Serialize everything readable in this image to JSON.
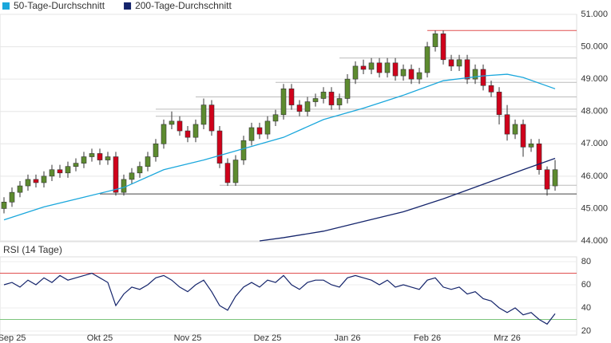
{
  "chart_data": {
    "type": "candlestick",
    "up_color": "#5d8b2f",
    "down_color": "#d0021b",
    "categories": [
      null,
      "Sep 25",
      null,
      null,
      null,
      null,
      null,
      null,
      null,
      null,
      null,
      null,
      "Okt 25",
      null,
      null,
      null,
      null,
      null,
      null,
      null,
      null,
      null,
      null,
      "Nov 25",
      null,
      null,
      null,
      null,
      null,
      null,
      null,
      null,
      null,
      "Dez 25",
      null,
      null,
      null,
      null,
      null,
      null,
      null,
      null,
      null,
      "Jan 26",
      null,
      null,
      null,
      null,
      null,
      null,
      null,
      null,
      null,
      "Feb 26",
      null,
      null,
      null,
      null,
      null,
      null,
      null,
      null,
      null,
      "Mrz 26",
      null,
      null,
      null,
      null,
      null,
      null
    ],
    "open": [
      45.0,
      45.2,
      45.5,
      45.7,
      45.9,
      45.8,
      46.0,
      46.2,
      46.1,
      46.3,
      46.4,
      46.6,
      46.7,
      46.5,
      46.6,
      45.5,
      45.9,
      46.1,
      46.3,
      46.6,
      47.0,
      47.6,
      47.7,
      47.4,
      47.2,
      47.6,
      48.2,
      47.4,
      46.4,
      45.8,
      46.5,
      47.1,
      47.5,
      47.3,
      47.7,
      47.9,
      48.7,
      48.2,
      48.0,
      48.3,
      48.4,
      48.6,
      48.2,
      48.4,
      49.0,
      49.4,
      49.3,
      49.5,
      49.2,
      49.5,
      49.1,
      49.3,
      49.0,
      49.2,
      50.0,
      50.4,
      49.6,
      49.4,
      49.6,
      49.0,
      49.3,
      48.8,
      48.6,
      47.9,
      47.3,
      47.6,
      46.9,
      47.0,
      46.2,
      45.7
    ],
    "high": [
      45.35,
      45.65,
      45.85,
      46.05,
      46.05,
      46.15,
      46.35,
      46.35,
      46.45,
      46.55,
      46.75,
      46.85,
      46.85,
      46.75,
      46.75,
      46.05,
      46.25,
      46.45,
      46.75,
      47.15,
      47.75,
      48.0,
      47.85,
      47.55,
      47.75,
      48.4,
      48.35,
      47.55,
      46.55,
      46.65,
      47.25,
      47.65,
      47.65,
      47.85,
      48.05,
      48.85,
      48.85,
      48.35,
      48.45,
      48.55,
      48.75,
      48.75,
      48.55,
      49.15,
      49.55,
      49.6,
      49.65,
      49.65,
      49.65,
      49.65,
      49.45,
      49.45,
      49.35,
      50.15,
      50.5,
      50.5,
      49.75,
      49.75,
      49.75,
      49.45,
      49.45,
      48.95,
      48.75,
      48.2,
      47.75,
      47.75,
      47.15,
      47.15,
      46.3,
      46.5
    ],
    "low": [
      44.85,
      45.05,
      45.35,
      45.55,
      45.65,
      45.65,
      45.85,
      45.95,
      45.95,
      46.15,
      46.25,
      46.45,
      46.35,
      46.35,
      45.4,
      45.4,
      45.75,
      45.95,
      46.15,
      46.45,
      46.85,
      47.45,
      47.25,
      47.05,
      47.05,
      47.45,
      47.25,
      46.25,
      45.7,
      45.7,
      46.35,
      46.95,
      47.15,
      47.15,
      47.55,
      47.75,
      48.05,
      47.85,
      47.85,
      48.15,
      48.25,
      48.05,
      48.05,
      48.25,
      48.85,
      49.15,
      49.15,
      49.05,
      49.05,
      48.95,
      48.95,
      48.85,
      48.85,
      49.05,
      49.85,
      49.45,
      49.25,
      49.25,
      48.85,
      48.85,
      48.65,
      48.45,
      47.6,
      47.1,
      47.15,
      46.6,
      46.75,
      46.05,
      45.4,
      45.55
    ],
    "close": [
      45.2,
      45.5,
      45.7,
      45.9,
      45.8,
      46.0,
      46.2,
      46.1,
      46.3,
      46.4,
      46.6,
      46.7,
      46.5,
      46.6,
      45.5,
      45.9,
      46.1,
      46.3,
      46.6,
      47.0,
      47.6,
      47.7,
      47.4,
      47.2,
      47.6,
      48.2,
      47.4,
      46.4,
      45.8,
      46.5,
      47.1,
      47.5,
      47.3,
      47.7,
      47.9,
      48.7,
      48.2,
      48.0,
      48.3,
      48.4,
      48.6,
      48.2,
      48.4,
      49.0,
      49.4,
      49.3,
      49.5,
      49.2,
      49.5,
      49.1,
      49.3,
      49.0,
      49.2,
      50.0,
      50.4,
      49.6,
      49.4,
      49.6,
      49.0,
      49.3,
      48.8,
      48.6,
      47.9,
      47.3,
      47.6,
      46.9,
      47.0,
      46.2,
      45.6,
      46.2
    ],
    "series": [
      {
        "name": "50-Tage-Durchschnitt",
        "color": "#1aa7dc",
        "x": [
          0,
          5,
          10,
          15,
          20,
          25,
          30,
          35,
          40,
          45,
          50,
          55,
          60,
          63,
          65,
          69
        ],
        "values": [
          44.65,
          45.05,
          45.35,
          45.65,
          46.2,
          46.5,
          46.85,
          47.2,
          47.75,
          48.1,
          48.5,
          48.95,
          49.1,
          49.15,
          49.05,
          48.7
        ]
      },
      {
        "name": "200-Tage-Durchschnitt",
        "color": "#14246b",
        "x": [
          32,
          35,
          40,
          45,
          50,
          55,
          60,
          65,
          69
        ],
        "values": [
          44.0,
          44.1,
          44.3,
          44.6,
          44.9,
          45.3,
          45.75,
          46.2,
          46.55
        ]
      }
    ],
    "levels": [
      {
        "value": 50.5,
        "from": 54,
        "color": "#e05050"
      },
      {
        "value": 49.65,
        "from": 43,
        "color": "#bbbbbb"
      },
      {
        "value": 48.9,
        "from": 35,
        "color": "#bbbbbb"
      },
      {
        "value": 48.45,
        "from": 25,
        "color": "#bbbbbb"
      },
      {
        "value": 48.07,
        "from": 20,
        "color": "#bbbbbb"
      },
      {
        "value": 47.85,
        "from": 20,
        "color": "#bbbbbb"
      },
      {
        "value": 45.72,
        "from": 28,
        "color": "#bbbbbb"
      },
      {
        "value": 45.45,
        "from": 13,
        "color": "#444444"
      }
    ],
    "ylim": [
      44,
      51
    ],
    "yticks": [
      {
        "value": 44,
        "label": "44.000"
      },
      {
        "value": 45,
        "label": "45.000"
      },
      {
        "value": 46,
        "label": "46.000"
      },
      {
        "value": 47,
        "label": "47.000"
      },
      {
        "value": 48,
        "label": "48.000"
      },
      {
        "value": 49,
        "label": "49.000"
      },
      {
        "value": 50,
        "label": "50.000"
      },
      {
        "value": 51,
        "label": "51.000"
      }
    ],
    "grid": true,
    "rsi": {
      "title": "RSI (14 Tage)",
      "color": "#14246b",
      "values": [
        60,
        62,
        58,
        64,
        60,
        66,
        62,
        68,
        64,
        66,
        68,
        70,
        66,
        62,
        42,
        52,
        58,
        56,
        60,
        66,
        68,
        64,
        58,
        54,
        60,
        64,
        54,
        42,
        38,
        50,
        58,
        62,
        58,
        64,
        62,
        68,
        60,
        56,
        62,
        64,
        64,
        60,
        58,
        66,
        68,
        66,
        64,
        60,
        64,
        58,
        60,
        58,
        56,
        64,
        66,
        58,
        56,
        58,
        52,
        54,
        48,
        46,
        40,
        36,
        40,
        34,
        36,
        30,
        26,
        35
      ],
      "ylim": [
        20,
        80
      ],
      "yticks": [
        20,
        40,
        60,
        80
      ],
      "levels": [
        {
          "value": 70,
          "color": "#e05050"
        },
        {
          "value": 30,
          "color": "#7cc47c"
        }
      ]
    }
  }
}
